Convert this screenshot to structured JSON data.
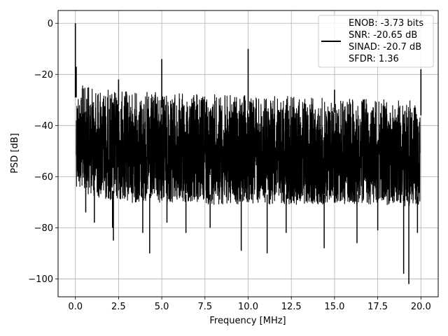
{
  "chart_data": {
    "type": "line",
    "xlabel": "Frequency [MHz]",
    "ylabel": "PSD [dB]",
    "xlim": [
      -1.0,
      21.0
    ],
    "ylim": [
      -107,
      5
    ],
    "xticks": [
      0.0,
      2.5,
      5.0,
      7.5,
      10.0,
      12.5,
      15.0,
      17.5,
      20.0
    ],
    "xtick_labels": [
      "0.0",
      "2.5",
      "5.0",
      "7.5",
      "10.0",
      "12.5",
      "15.0",
      "17.5",
      "20.0"
    ],
    "yticks": [
      0,
      -20,
      -40,
      -60,
      -80,
      -100
    ],
    "ytick_labels": [
      "0",
      "−20",
      "−40",
      "−60",
      "−80",
      "−100"
    ],
    "grid": true,
    "legend_position": "top-right",
    "legend_entries": [
      "ENOB: -3.73 bits",
      "SNR: -20.65 dB",
      "SINAD: -20.7 dB",
      "SFDR: 1.36"
    ],
    "series_color": "#000000",
    "noise_band": {
      "x": [
        0.05,
        0.5,
        1.0,
        2.5,
        5.0,
        7.5,
        10.0,
        12.5,
        15.0,
        17.5,
        19.95
      ],
      "upper": [
        -23,
        -24,
        -25,
        -26,
        -27,
        -27.5,
        -28,
        -28.5,
        -29,
        -29.5,
        -30
      ],
      "lower": [
        -64,
        -66,
        -68,
        -70,
        -71,
        -71,
        -71,
        -71,
        -71,
        -71,
        -72
      ]
    },
    "peaks": [
      {
        "x": 0.0,
        "y": 0
      },
      {
        "x": 0.05,
        "y": -17
      },
      {
        "x": 2.5,
        "y": -22
      },
      {
        "x": 5.0,
        "y": -14
      },
      {
        "x": 10.0,
        "y": -10
      },
      {
        "x": 15.0,
        "y": -26
      },
      {
        "x": 20.0,
        "y": -18
      }
    ],
    "dips": [
      {
        "x": 0.6,
        "y": -74
      },
      {
        "x": 1.1,
        "y": -78
      },
      {
        "x": 2.2,
        "y": -85
      },
      {
        "x": 2.15,
        "y": -80
      },
      {
        "x": 3.9,
        "y": -82
      },
      {
        "x": 4.3,
        "y": -90
      },
      {
        "x": 5.3,
        "y": -78
      },
      {
        "x": 6.4,
        "y": -82
      },
      {
        "x": 7.8,
        "y": -80
      },
      {
        "x": 9.6,
        "y": -89
      },
      {
        "x": 11.1,
        "y": -90
      },
      {
        "x": 12.2,
        "y": -82
      },
      {
        "x": 14.4,
        "y": -88
      },
      {
        "x": 16.3,
        "y": -86
      },
      {
        "x": 17.5,
        "y": -81
      },
      {
        "x": 19.0,
        "y": -98
      },
      {
        "x": 19.3,
        "y": -102
      },
      {
        "x": 19.8,
        "y": -82
      }
    ]
  }
}
